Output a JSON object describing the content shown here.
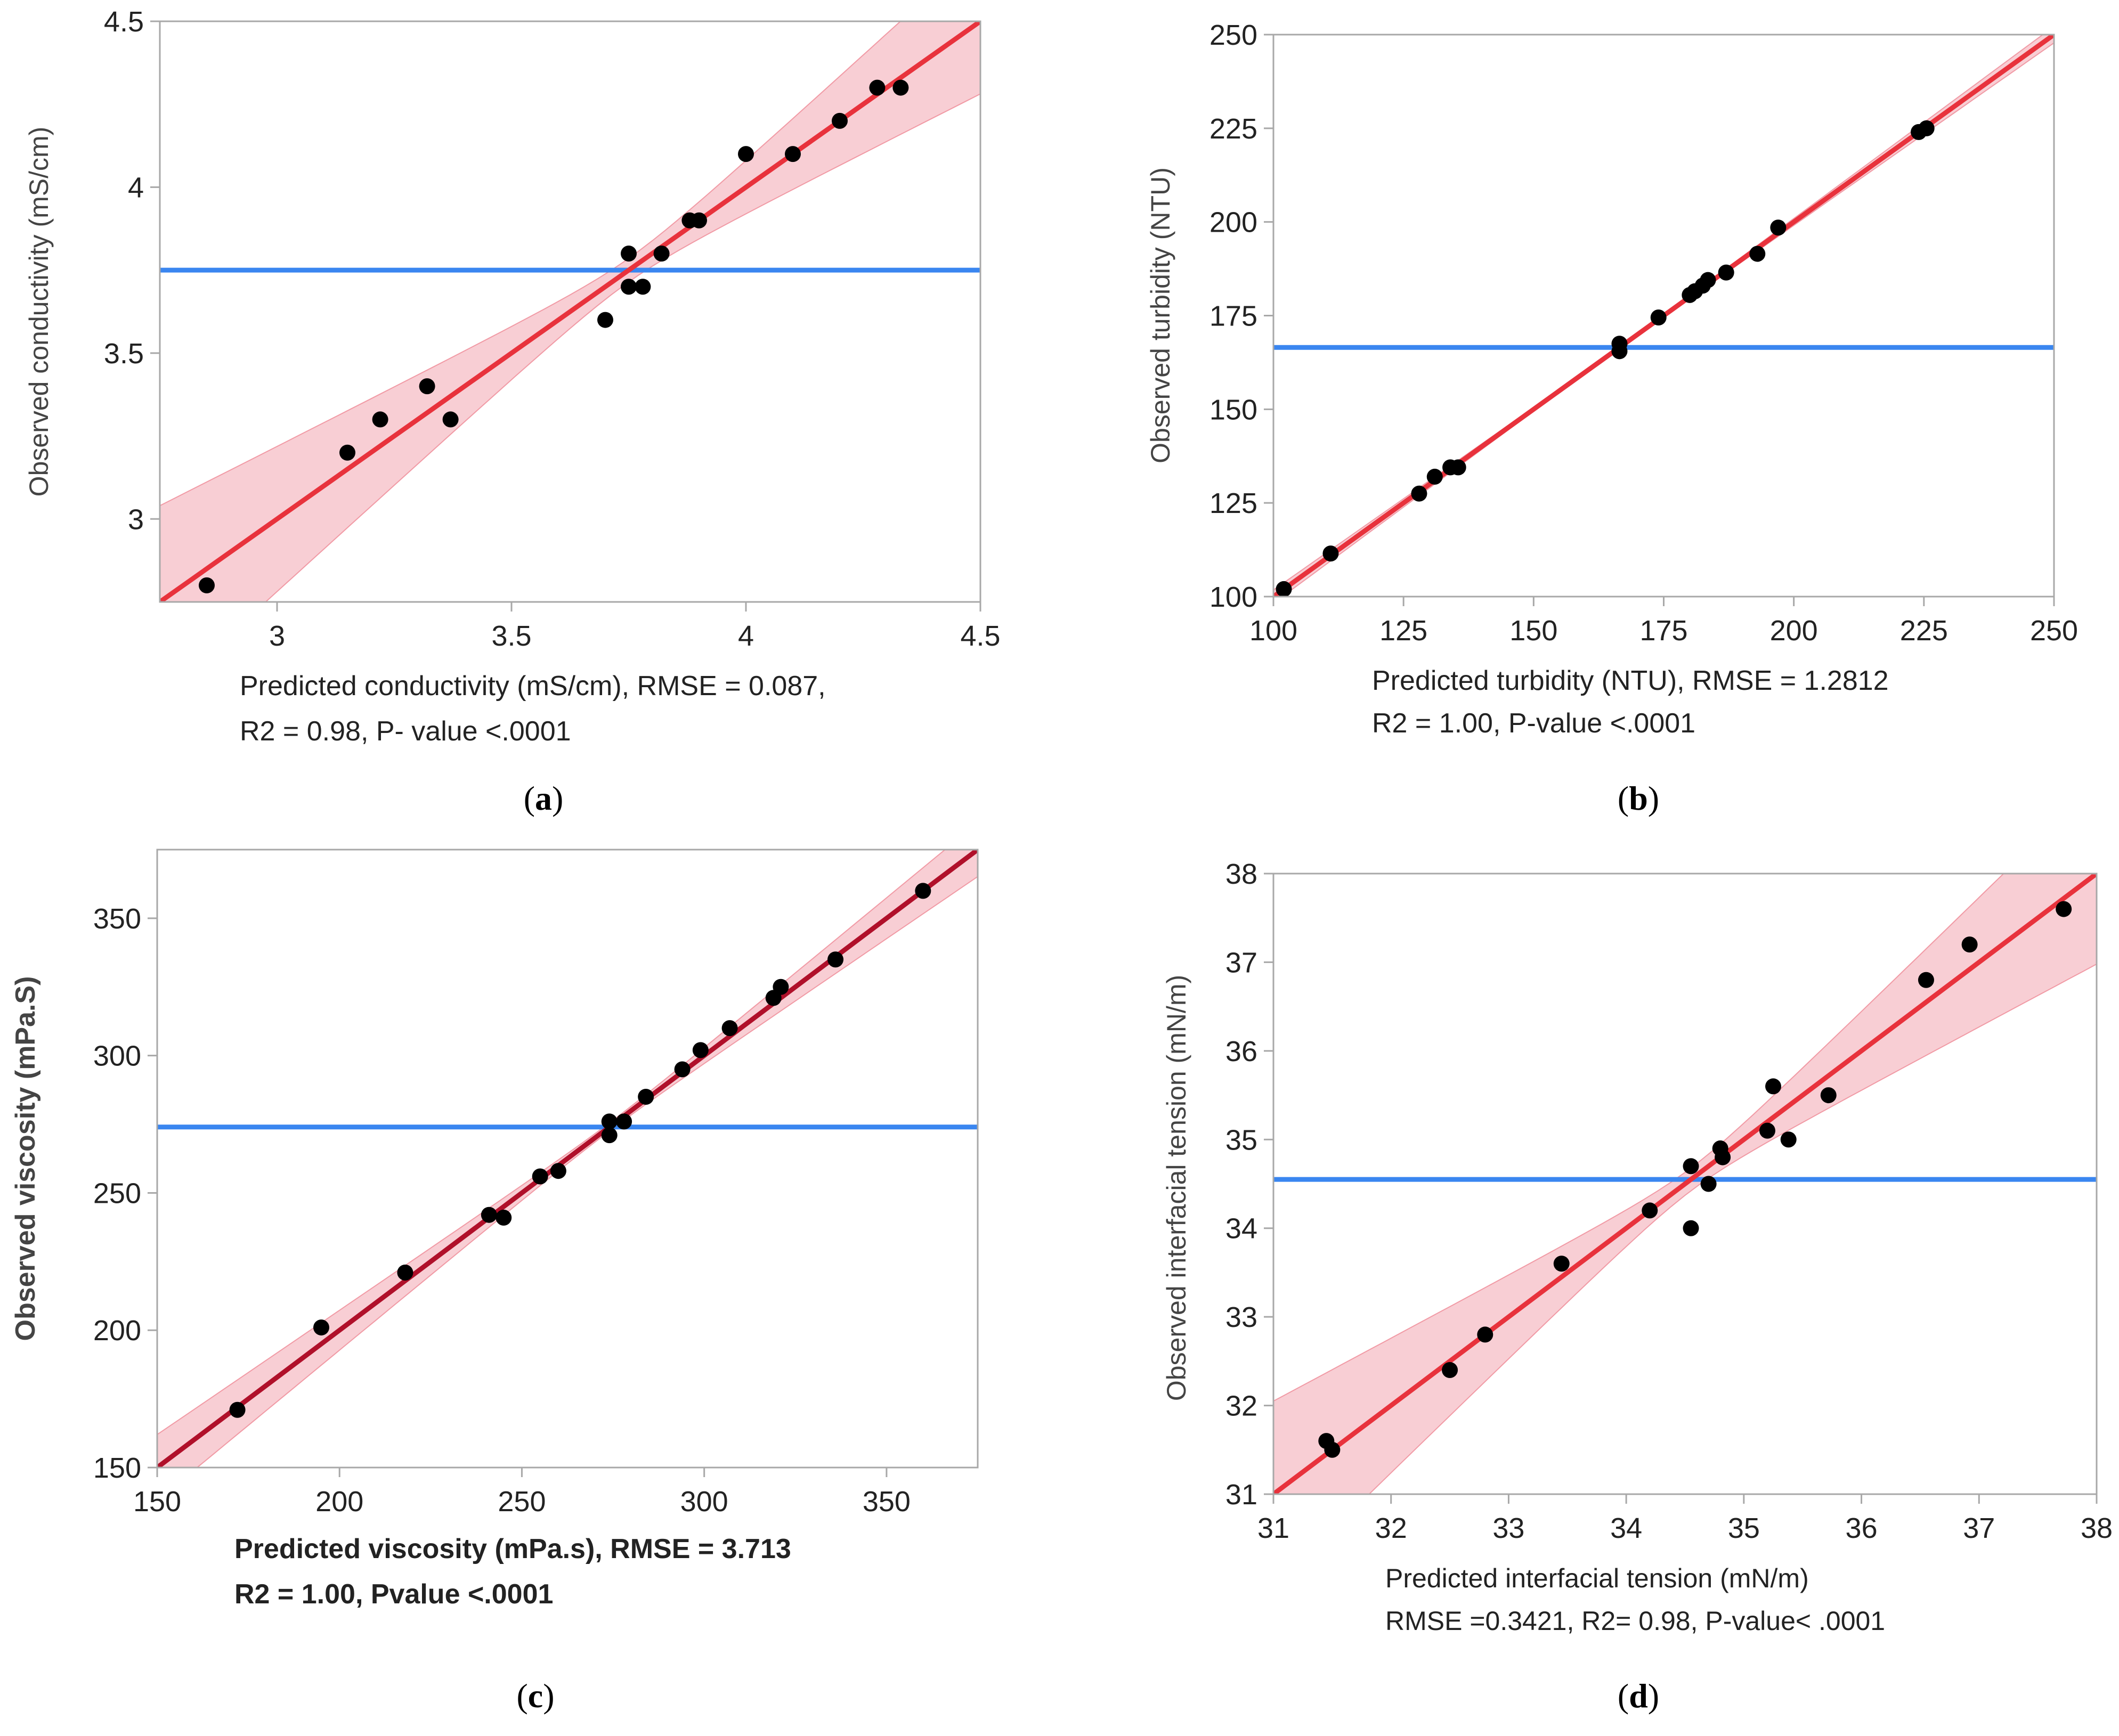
{
  "colors": {
    "fit_line": "#e8323c",
    "fit_line_dark": "#b0102a",
    "band_fill": "#f7c6cc",
    "band_edge": "#f19aa5",
    "mean_line": "#3a86f0",
    "points": "#000000",
    "frame": "#a8a8a8"
  },
  "chart_data": [
    {
      "type": "scatter",
      "id": "a",
      "panel_label": "(a)",
      "panel_letter": "a",
      "ylabel": "Observed conductivity (mS/cm)",
      "xlabel_line1": "Predicted conductivity (mS/cm), RMSE = 0.087,",
      "xlabel_line2": "R2 = 0.98, P- value <.0001",
      "xlim": [
        2.75,
        4.5
      ],
      "ylim": [
        2.75,
        4.5
      ],
      "xticks": [
        3,
        3.5,
        4,
        4.5
      ],
      "xtick_labels": [
        "3",
        "3.5",
        "4",
        "4.5"
      ],
      "yticks": [
        3,
        3.5,
        4,
        4.5
      ],
      "ytick_labels": [
        "3",
        "3.5",
        "4",
        "4.5"
      ],
      "mean_y": 3.75,
      "fit": {
        "x0": 2.75,
        "y0": 2.75,
        "x1": 4.5,
        "y1": 4.5
      },
      "band_center_x": 3.75,
      "band_halfwidth_at_edge": 0.29,
      "points": [
        [
          2.85,
          2.8
        ],
        [
          3.15,
          3.2
        ],
        [
          3.22,
          3.3
        ],
        [
          3.32,
          3.4
        ],
        [
          3.37,
          3.3
        ],
        [
          3.7,
          3.6
        ],
        [
          3.75,
          3.8
        ],
        [
          3.75,
          3.7
        ],
        [
          3.78,
          3.7
        ],
        [
          3.82,
          3.8
        ],
        [
          3.88,
          3.9
        ],
        [
          3.9,
          3.9
        ],
        [
          4.0,
          4.1
        ],
        [
          4.1,
          4.1
        ],
        [
          4.2,
          4.2
        ],
        [
          4.28,
          4.3
        ],
        [
          4.33,
          4.3
        ]
      ]
    },
    {
      "type": "scatter",
      "id": "b",
      "panel_label": "(b)",
      "panel_letter": "b",
      "ylabel": "Observed turbidity (NTU)",
      "xlabel_line1": "Predicted turbidity (NTU), RMSE = 1.2812",
      "xlabel_line2": "R2 = 1.00, P-value <.0001",
      "xlim": [
        100,
        250
      ],
      "ylim": [
        100,
        250
      ],
      "xticks": [
        100,
        125,
        150,
        175,
        200,
        225,
        250
      ],
      "xtick_labels": [
        "100",
        "125",
        "150",
        "175",
        "200",
        "225",
        "250"
      ],
      "yticks": [
        100,
        125,
        150,
        175,
        200,
        225,
        250
      ],
      "ytick_labels": [
        "100",
        "125",
        "150",
        "175",
        "200",
        "225",
        "250"
      ],
      "mean_y": 166.5,
      "fit": {
        "x0": 100,
        "y0": 100,
        "x1": 250,
        "y1": 250
      },
      "band_center_x": 166.5,
      "band_halfwidth_at_edge": 2.2,
      "points": [
        [
          102,
          102
        ],
        [
          111,
          111.5
        ],
        [
          128,
          127.5
        ],
        [
          131,
          132
        ],
        [
          134,
          134.5
        ],
        [
          135.5,
          134.5
        ],
        [
          166.5,
          165.5
        ],
        [
          166.5,
          167.5
        ],
        [
          174,
          174.5
        ],
        [
          180,
          180.5
        ],
        [
          181,
          181.5
        ],
        [
          182.5,
          183
        ],
        [
          183.5,
          184.5
        ],
        [
          187,
          186.5
        ],
        [
          193,
          191.5
        ],
        [
          197,
          198.5
        ],
        [
          224,
          224
        ],
        [
          225.5,
          225
        ]
      ]
    },
    {
      "type": "scatter",
      "id": "c",
      "panel_label": "(c)",
      "panel_letter": "c",
      "ylabel": "Observed viscosity (mPa.S)",
      "xlabel_line1": "Predicted viscosity (mPa.s), RMSE = 3.713",
      "xlabel_line2": "R2 = 1.00, Pvalue <.0001",
      "xlim": [
        150,
        375
      ],
      "ylim": [
        150,
        375
      ],
      "xticks": [
        150,
        200,
        250,
        300,
        350
      ],
      "xtick_labels": [
        "150",
        "200",
        "250",
        "300",
        "350"
      ],
      "yticks": [
        150,
        200,
        250,
        300,
        350
      ],
      "ytick_labels": [
        "150",
        "200",
        "250",
        "300",
        "350"
      ],
      "mean_y": 274,
      "fit": {
        "x0": 150,
        "y0": 150,
        "x1": 375,
        "y1": 375
      },
      "band_center_x": 274,
      "band_halfwidth_at_edge": 12,
      "points": [
        [
          172,
          171
        ],
        [
          195,
          201
        ],
        [
          218,
          221
        ],
        [
          241,
          242
        ],
        [
          245,
          241
        ],
        [
          255,
          256
        ],
        [
          260,
          258
        ],
        [
          274,
          276
        ],
        [
          274,
          271
        ],
        [
          278,
          276
        ],
        [
          284,
          285
        ],
        [
          294,
          295
        ],
        [
          299,
          302
        ],
        [
          307,
          310
        ],
        [
          319,
          321
        ],
        [
          321,
          325
        ],
        [
          336,
          335
        ],
        [
          360,
          360
        ]
      ]
    },
    {
      "type": "scatter",
      "id": "d",
      "panel_label": "(d)",
      "panel_letter": "d",
      "ylabel": "Observed interfacial tension (mN/m)",
      "xlabel_line1": "Predicted interfacial tension (mN/m)",
      "xlabel_line2": "RMSE =0.3421, R2= 0.98, P-value< .0001",
      "xlim": [
        31,
        38
      ],
      "ylim": [
        31,
        38
      ],
      "xticks": [
        31,
        32,
        33,
        34,
        35,
        36,
        37,
        38
      ],
      "xtick_labels": [
        "31",
        "32",
        "33",
        "34",
        "35",
        "36",
        "37",
        "38"
      ],
      "yticks": [
        31,
        32,
        33,
        34,
        35,
        36,
        37,
        38
      ],
      "ytick_labels": [
        "31",
        "32",
        "33",
        "34",
        "35",
        "36",
        "37",
        "38"
      ],
      "mean_y": 34.55,
      "fit": {
        "x0": 31,
        "y0": 31,
        "x1": 38,
        "y1": 38
      },
      "band_center_x": 34.55,
      "band_halfwidth_at_edge": 1.05,
      "points": [
        [
          31.45,
          31.6
        ],
        [
          31.5,
          31.5
        ],
        [
          32.5,
          32.4
        ],
        [
          32.8,
          32.8
        ],
        [
          33.45,
          33.6
        ],
        [
          34.2,
          34.2
        ],
        [
          34.55,
          34.7
        ],
        [
          34.55,
          34.0
        ],
        [
          34.7,
          34.5
        ],
        [
          34.8,
          34.9
        ],
        [
          34.82,
          34.8
        ],
        [
          35.2,
          35.1
        ],
        [
          35.25,
          35.6
        ],
        [
          35.38,
          35.0
        ],
        [
          35.72,
          35.5
        ],
        [
          36.55,
          36.8
        ],
        [
          36.92,
          37.2
        ],
        [
          37.72,
          37.6
        ]
      ]
    }
  ]
}
